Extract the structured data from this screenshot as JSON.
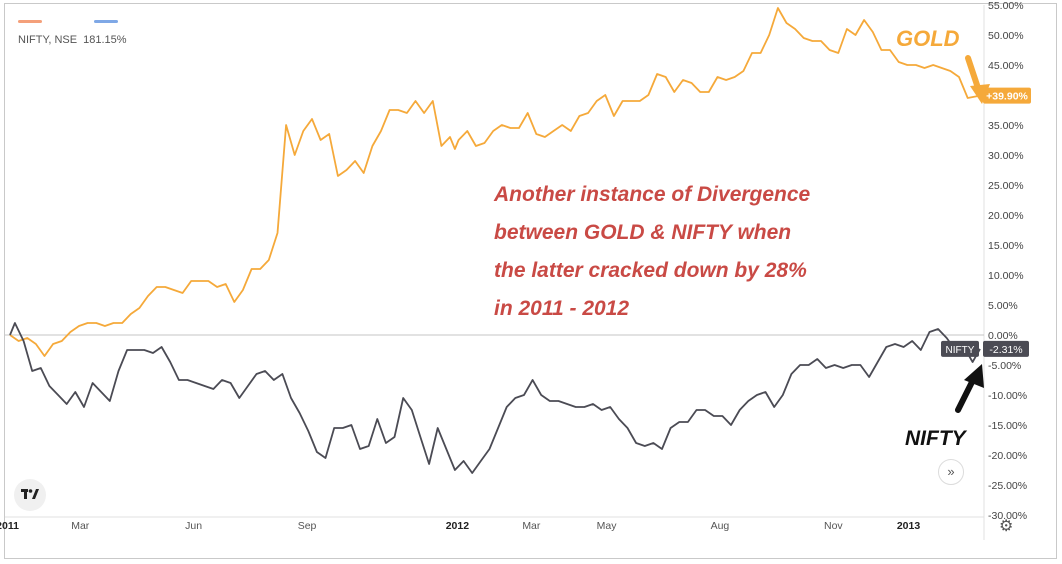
{
  "legend": {
    "symbol": "NIFTY, NSE",
    "value": "181.15%",
    "swatch_colors": [
      "#f4a07a",
      "#7fa8e6"
    ]
  },
  "annotation": [
    "Another instance of Divergence",
    "between GOLD & NIFTY when",
    "the latter cracked down by 28%",
    "in 2011 - 2012"
  ],
  "labels": {
    "gold": "GOLD",
    "nifty": "NIFTY"
  },
  "icons": {
    "logo": "tradingview-logo-icon",
    "scroll": "double-chevron-right-icon",
    "settings": "gear-icon"
  },
  "badges": {
    "gold_value": "+39.90%",
    "nifty_name": "NIFTY",
    "nifty_value": "-2.31%"
  },
  "chart_data": {
    "type": "line",
    "title": "",
    "xlabel": "",
    "ylabel": "",
    "ylim": [
      -30,
      55
    ],
    "y_ticks": [
      "55.00%",
      "50.00%",
      "45.00%",
      "40.00%",
      "35.00%",
      "30.00%",
      "25.00%",
      "20.00%",
      "15.00%",
      "10.00%",
      "5.00%",
      "0.00%",
      "-5.00%",
      "-10.00%",
      "-15.00%",
      "-20.00%",
      "-25.00%",
      "-30.00%"
    ],
    "x_range": [
      "2011-01-03",
      "2013-02-28"
    ],
    "x_ticks": [
      {
        "label": "2011",
        "date": "2011-01-01",
        "bold": true
      },
      {
        "label": "Mar",
        "date": "2011-03-01",
        "bold": false
      },
      {
        "label": "Jun",
        "date": "2011-06-01",
        "bold": false
      },
      {
        "label": "Sep",
        "date": "2011-09-01",
        "bold": false
      },
      {
        "label": "2012",
        "date": "2012-01-01",
        "bold": true
      },
      {
        "label": "Mar",
        "date": "2012-03-01",
        "bold": false
      },
      {
        "label": "May",
        "date": "2012-05-01",
        "bold": false
      },
      {
        "label": "Aug",
        "date": "2012-08-01",
        "bold": false
      },
      {
        "label": "Nov",
        "date": "2012-11-01",
        "bold": false
      },
      {
        "label": "2013",
        "date": "2013-01-01",
        "bold": true
      }
    ],
    "series": [
      {
        "name": "GOLD",
        "color": "#f5a93a",
        "points": [
          [
            "2011-01-03",
            0
          ],
          [
            "2011-01-10",
            -1
          ],
          [
            "2011-01-17",
            -0.5
          ],
          [
            "2011-01-24",
            -1.5
          ],
          [
            "2011-01-31",
            -3.5
          ],
          [
            "2011-02-07",
            -1.5
          ],
          [
            "2011-02-14",
            -1
          ],
          [
            "2011-02-21",
            0.5
          ],
          [
            "2011-02-28",
            1.5
          ],
          [
            "2011-03-07",
            2
          ],
          [
            "2011-03-14",
            2
          ],
          [
            "2011-03-21",
            1.5
          ],
          [
            "2011-03-28",
            2
          ],
          [
            "2011-04-04",
            2
          ],
          [
            "2011-04-11",
            3.5
          ],
          [
            "2011-04-18",
            4.5
          ],
          [
            "2011-04-25",
            6.5
          ],
          [
            "2011-05-02",
            8
          ],
          [
            "2011-05-09",
            8
          ],
          [
            "2011-05-16",
            7.5
          ],
          [
            "2011-05-23",
            7
          ],
          [
            "2011-05-30",
            9
          ],
          [
            "2011-06-06",
            9
          ],
          [
            "2011-06-13",
            9
          ],
          [
            "2011-06-20",
            8
          ],
          [
            "2011-06-27",
            8.5
          ],
          [
            "2011-07-04",
            5.5
          ],
          [
            "2011-07-11",
            7.5
          ],
          [
            "2011-07-18",
            11
          ],
          [
            "2011-07-25",
            11
          ],
          [
            "2011-08-01",
            12.5
          ],
          [
            "2011-08-08",
            17
          ],
          [
            "2011-08-15",
            35
          ],
          [
            "2011-08-22",
            30
          ],
          [
            "2011-08-29",
            34
          ],
          [
            "2011-09-05",
            36
          ],
          [
            "2011-09-12",
            32.5
          ],
          [
            "2011-09-19",
            33.5
          ],
          [
            "2011-09-26",
            26.5
          ],
          [
            "2011-10-03",
            27.5
          ],
          [
            "2011-10-10",
            29
          ],
          [
            "2011-10-17",
            27
          ],
          [
            "2011-10-24",
            31.5
          ],
          [
            "2011-10-31",
            34
          ],
          [
            "2011-11-07",
            37.5
          ],
          [
            "2011-11-14",
            37.5
          ],
          [
            "2011-11-21",
            37
          ],
          [
            "2011-11-28",
            39
          ],
          [
            "2011-12-05",
            37
          ],
          [
            "2011-12-12",
            39
          ],
          [
            "2011-12-19",
            31.5
          ],
          [
            "2011-12-26",
            33
          ],
          [
            "2011-12-30",
            31
          ],
          [
            "2012-01-02",
            32.5
          ],
          [
            "2012-01-09",
            34
          ],
          [
            "2012-01-16",
            31.5
          ],
          [
            "2012-01-23",
            32
          ],
          [
            "2012-01-30",
            34
          ],
          [
            "2012-02-06",
            35
          ],
          [
            "2012-02-13",
            34.5
          ],
          [
            "2012-02-20",
            34.5
          ],
          [
            "2012-02-27",
            37
          ],
          [
            "2012-03-05",
            33.5
          ],
          [
            "2012-03-12",
            33
          ],
          [
            "2012-03-19",
            34
          ],
          [
            "2012-03-26",
            35
          ],
          [
            "2012-04-02",
            34
          ],
          [
            "2012-04-09",
            36.5
          ],
          [
            "2012-04-16",
            37
          ],
          [
            "2012-04-23",
            39
          ],
          [
            "2012-04-30",
            40
          ],
          [
            "2012-05-07",
            36.5
          ],
          [
            "2012-05-14",
            39
          ],
          [
            "2012-05-21",
            39
          ],
          [
            "2012-05-28",
            39
          ],
          [
            "2012-06-04",
            40
          ],
          [
            "2012-06-11",
            43.5
          ],
          [
            "2012-06-18",
            43
          ],
          [
            "2012-06-25",
            40.5
          ],
          [
            "2012-07-02",
            42.5
          ],
          [
            "2012-07-09",
            42
          ],
          [
            "2012-07-16",
            40.5
          ],
          [
            "2012-07-23",
            40.5
          ],
          [
            "2012-07-30",
            43
          ],
          [
            "2012-08-06",
            42.5
          ],
          [
            "2012-08-13",
            43
          ],
          [
            "2012-08-20",
            44
          ],
          [
            "2012-08-27",
            47
          ],
          [
            "2012-09-03",
            47
          ],
          [
            "2012-09-10",
            50
          ],
          [
            "2012-09-17",
            54.5
          ],
          [
            "2012-09-24",
            52
          ],
          [
            "2012-10-01",
            51
          ],
          [
            "2012-10-08",
            49.5
          ],
          [
            "2012-10-15",
            49
          ],
          [
            "2012-10-22",
            49
          ],
          [
            "2012-10-29",
            47.5
          ],
          [
            "2012-11-05",
            47
          ],
          [
            "2012-11-12",
            51
          ],
          [
            "2012-11-19",
            50
          ],
          [
            "2012-11-26",
            52.5
          ],
          [
            "2012-12-03",
            50.5
          ],
          [
            "2012-12-10",
            47.5
          ],
          [
            "2012-12-17",
            47.5
          ],
          [
            "2012-12-24",
            45.5
          ],
          [
            "2012-12-31",
            45
          ],
          [
            "2013-01-07",
            45
          ],
          [
            "2013-01-14",
            44.5
          ],
          [
            "2013-01-21",
            45
          ],
          [
            "2013-01-28",
            44.5
          ],
          [
            "2013-02-04",
            44
          ],
          [
            "2013-02-11",
            43
          ],
          [
            "2013-02-18",
            39.5
          ],
          [
            "2013-02-28",
            39.9
          ]
        ]
      },
      {
        "name": "NIFTY",
        "color": "#4b4b54",
        "points": [
          [
            "2011-01-03",
            0
          ],
          [
            "2011-01-07",
            2
          ],
          [
            "2011-01-14",
            -1
          ],
          [
            "2011-01-21",
            -6
          ],
          [
            "2011-01-28",
            -5.5
          ],
          [
            "2011-02-04",
            -8.5
          ],
          [
            "2011-02-11",
            -10
          ],
          [
            "2011-02-18",
            -11.5
          ],
          [
            "2011-02-25",
            -9.5
          ],
          [
            "2011-03-04",
            -12
          ],
          [
            "2011-03-11",
            -8
          ],
          [
            "2011-03-18",
            -9.5
          ],
          [
            "2011-03-25",
            -11
          ],
          [
            "2011-04-01",
            -6
          ],
          [
            "2011-04-08",
            -2.5
          ],
          [
            "2011-04-15",
            -2.5
          ],
          [
            "2011-04-22",
            -2.5
          ],
          [
            "2011-04-29",
            -3
          ],
          [
            "2011-05-06",
            -2
          ],
          [
            "2011-05-13",
            -4.5
          ],
          [
            "2011-05-20",
            -7.5
          ],
          [
            "2011-05-27",
            -7.5
          ],
          [
            "2011-06-03",
            -8
          ],
          [
            "2011-06-10",
            -8.5
          ],
          [
            "2011-06-17",
            -9
          ],
          [
            "2011-06-24",
            -7.5
          ],
          [
            "2011-07-01",
            -8
          ],
          [
            "2011-07-08",
            -10.5
          ],
          [
            "2011-07-15",
            -8.5
          ],
          [
            "2011-07-22",
            -6.5
          ],
          [
            "2011-07-29",
            -6
          ],
          [
            "2011-08-05",
            -7.5
          ],
          [
            "2011-08-12",
            -6.5
          ],
          [
            "2011-08-19",
            -10.5
          ],
          [
            "2011-08-26",
            -13
          ],
          [
            "2011-09-02",
            -16
          ],
          [
            "2011-09-09",
            -19.5
          ],
          [
            "2011-09-16",
            -20.5
          ],
          [
            "2011-09-23",
            -15.5
          ],
          [
            "2011-09-30",
            -15.5
          ],
          [
            "2011-10-07",
            -15
          ],
          [
            "2011-10-14",
            -19
          ],
          [
            "2011-10-21",
            -18.5
          ],
          [
            "2011-10-28",
            -14
          ],
          [
            "2011-11-04",
            -18
          ],
          [
            "2011-11-11",
            -17
          ],
          [
            "2011-11-18",
            -10.5
          ],
          [
            "2011-11-25",
            -12.5
          ],
          [
            "2011-12-02",
            -17
          ],
          [
            "2011-12-09",
            -21.5
          ],
          [
            "2011-12-16",
            -15.5
          ],
          [
            "2011-12-23",
            -19
          ],
          [
            "2011-12-30",
            -22.5
          ],
          [
            "2012-01-06",
            -21
          ],
          [
            "2012-01-13",
            -23
          ],
          [
            "2012-01-20",
            -21
          ],
          [
            "2012-01-27",
            -19
          ],
          [
            "2012-02-03",
            -15.5
          ],
          [
            "2012-02-10",
            -12
          ],
          [
            "2012-02-17",
            -10.5
          ],
          [
            "2012-02-24",
            -10
          ],
          [
            "2012-03-02",
            -7.5
          ],
          [
            "2012-03-09",
            -10
          ],
          [
            "2012-03-16",
            -11
          ],
          [
            "2012-03-23",
            -11
          ],
          [
            "2012-03-30",
            -11.5
          ],
          [
            "2012-04-06",
            -12
          ],
          [
            "2012-04-13",
            -12
          ],
          [
            "2012-04-20",
            -11.5
          ],
          [
            "2012-04-27",
            -12.5
          ],
          [
            "2012-05-04",
            -12
          ],
          [
            "2012-05-11",
            -14
          ],
          [
            "2012-05-18",
            -15.5
          ],
          [
            "2012-05-25",
            -18
          ],
          [
            "2012-06-01",
            -18.5
          ],
          [
            "2012-06-08",
            -18
          ],
          [
            "2012-06-15",
            -19
          ],
          [
            "2012-06-22",
            -15.5
          ],
          [
            "2012-06-29",
            -14.5
          ],
          [
            "2012-07-06",
            -14.5
          ],
          [
            "2012-07-13",
            -12.5
          ],
          [
            "2012-07-20",
            -12.5
          ],
          [
            "2012-07-27",
            -13.5
          ],
          [
            "2012-08-03",
            -13.5
          ],
          [
            "2012-08-10",
            -15
          ],
          [
            "2012-08-17",
            -12.5
          ],
          [
            "2012-08-24",
            -11
          ],
          [
            "2012-08-31",
            -10
          ],
          [
            "2012-09-07",
            -9.5
          ],
          [
            "2012-09-14",
            -12
          ],
          [
            "2012-09-21",
            -10
          ],
          [
            "2012-09-28",
            -6.5
          ],
          [
            "2012-10-05",
            -5
          ],
          [
            "2012-10-12",
            -5
          ],
          [
            "2012-10-19",
            -4
          ],
          [
            "2012-10-26",
            -5.5
          ],
          [
            "2012-11-02",
            -5
          ],
          [
            "2012-11-09",
            -5.5
          ],
          [
            "2012-11-16",
            -5
          ],
          [
            "2012-11-23",
            -5
          ],
          [
            "2012-11-30",
            -7
          ],
          [
            "2012-12-07",
            -4.5
          ],
          [
            "2012-12-14",
            -2
          ],
          [
            "2012-12-21",
            -1.5
          ],
          [
            "2012-12-28",
            -2
          ],
          [
            "2013-01-04",
            -1
          ],
          [
            "2013-01-11",
            -2.5
          ],
          [
            "2013-01-18",
            0.5
          ],
          [
            "2013-01-25",
            1
          ],
          [
            "2013-02-01",
            -0.5
          ],
          [
            "2013-02-08",
            -2.5
          ],
          [
            "2013-02-15",
            -2
          ],
          [
            "2013-02-22",
            -4.5
          ],
          [
            "2013-02-28",
            -2.31
          ]
        ]
      }
    ]
  }
}
